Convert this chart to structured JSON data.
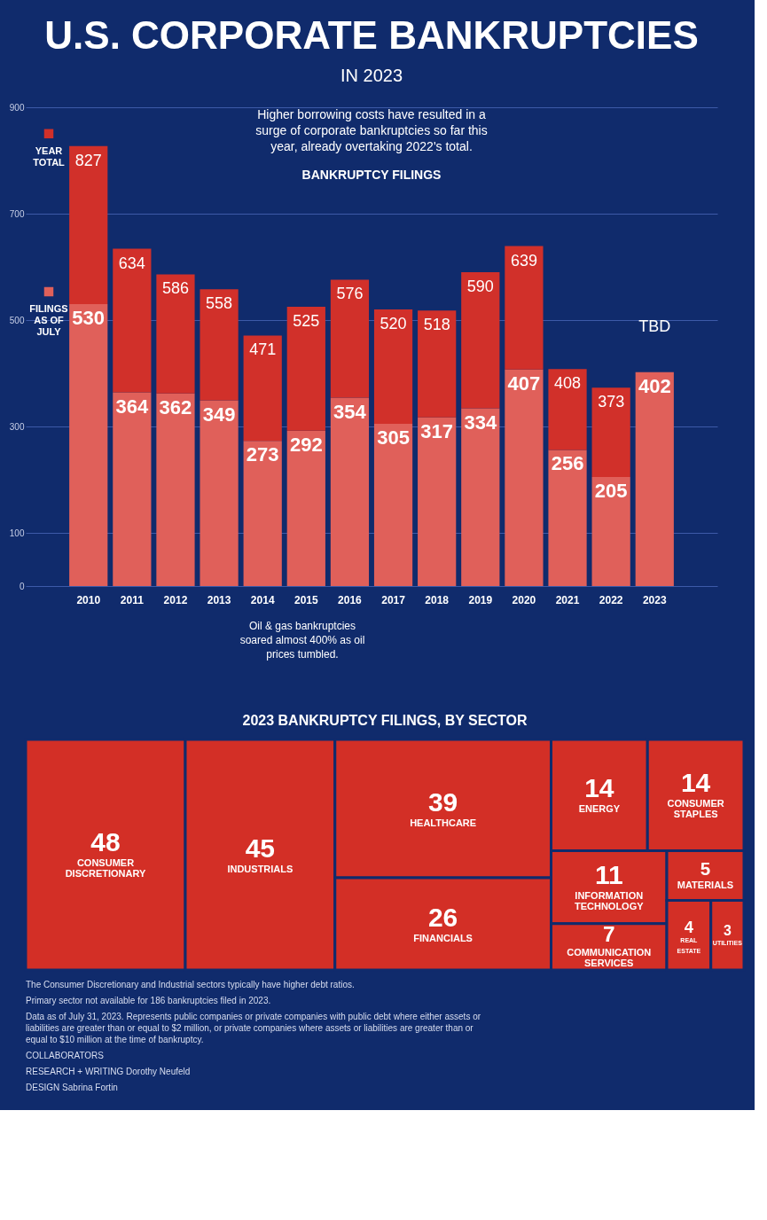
{
  "chart_data": [
    {
      "type": "bar",
      "title": "U.S. CORPORATE BANKRUPTCIES",
      "subtitle": "IN 2023",
      "categories": [
        "2010",
        "2011",
        "2012",
        "2013",
        "2014",
        "2015",
        "2016",
        "2017",
        "2018",
        "2019",
        "2020",
        "2021",
        "2022",
        "2023"
      ],
      "series": [
        {
          "name": "FILINGS AS OF JULY",
          "color": "#e0605a",
          "values": [
            530,
            364,
            362,
            349,
            273,
            292,
            354,
            305,
            317,
            334,
            407,
            256,
            205,
            402
          ],
          "value_labels": [
            "530",
            "364",
            "362",
            "349",
            "273",
            "292",
            "354",
            "305",
            "317",
            "334",
            "407",
            "256",
            "205",
            "402"
          ]
        },
        {
          "name": "YEAR TOTAL",
          "color": "#d1302a",
          "values": [
            297,
            270,
            224,
            209,
            198,
            233,
            222,
            215,
            201,
            256,
            232,
            152,
            168,
            null
          ]
        }
      ],
      "stacked": true,
      "totals": [
        "827",
        "634",
        "586",
        "558",
        "471",
        "525",
        "576",
        "520",
        "518",
        "590",
        "639",
        "408",
        "373",
        "TBD"
      ],
      "legend": "left",
      "ylim": [
        0,
        900
      ],
      "yticks": [
        0,
        100,
        300,
        500,
        700,
        900
      ],
      "grid": "y",
      "annotations": [
        "Higher borrowing costs have resulted in a surge of corporate bankruptcies so far this year, already overtaking 2022's total.",
        "BANKRUPTCY FILINGS",
        "Oil & gas bankruptcies soared almost 400% as oil prices tumbled."
      ]
    },
    {
      "type": "other",
      "title": "2023 BANKRUPTCY FILINGS, BY SECTOR",
      "color": "#d32f26",
      "categories": [
        "CONSUMER DISCRETIONARY",
        "INDUSTRIALS",
        "HEALTHCARE",
        "FINANCIALS",
        "ENERGY",
        "CONSUMER STAPLES",
        "INFORMATION TECHNOLOGY",
        "COMMUNICATION SERVICES",
        "MATERIALS",
        "REAL ESTATE",
        "UTILITIES"
      ],
      "values": [
        48,
        45,
        39,
        26,
        14,
        14,
        11,
        7,
        5,
        4,
        3
      ],
      "data_labels": true,
      "annotations": [
        "The Consumer Discretionary and Industrial sectors typically have higher debt ratios.",
        "Primary sector not available for 186 bankruptcies filed in 2023.",
        "Data as of July 31, 2023. Represents public companies or private companies with public debt where either assets or liabilities are greater than or equal to $2 million, or private companies where assets or liabilities are greater than or equal to $10 million at the time of bankruptcy.",
        "COLLABORATORS",
        "RESEARCH + WRITING Dorothy Neufeld",
        "DESIGN Sabrina Fortin"
      ]
    }
  ]
}
